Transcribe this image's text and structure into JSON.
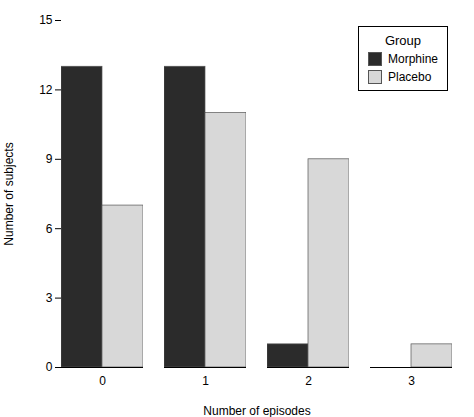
{
  "chart_data": {
    "type": "bar",
    "categories": [
      "0",
      "1",
      "2",
      "3"
    ],
    "series": [
      {
        "name": "Morphine",
        "color": "#2b2b2b",
        "values": [
          13,
          13,
          1,
          0
        ]
      },
      {
        "name": "Placebo",
        "color": "#d8d8d8",
        "values": [
          7,
          11,
          9,
          1
        ]
      }
    ],
    "xlabel": "Number of episodes",
    "ylabel": "Number of subjects",
    "ylim": [
      0,
      15
    ],
    "yticks": [
      0,
      3,
      6,
      9,
      12,
      15
    ],
    "grid": false,
    "legend": "upper right",
    "legend_title": "Group"
  }
}
